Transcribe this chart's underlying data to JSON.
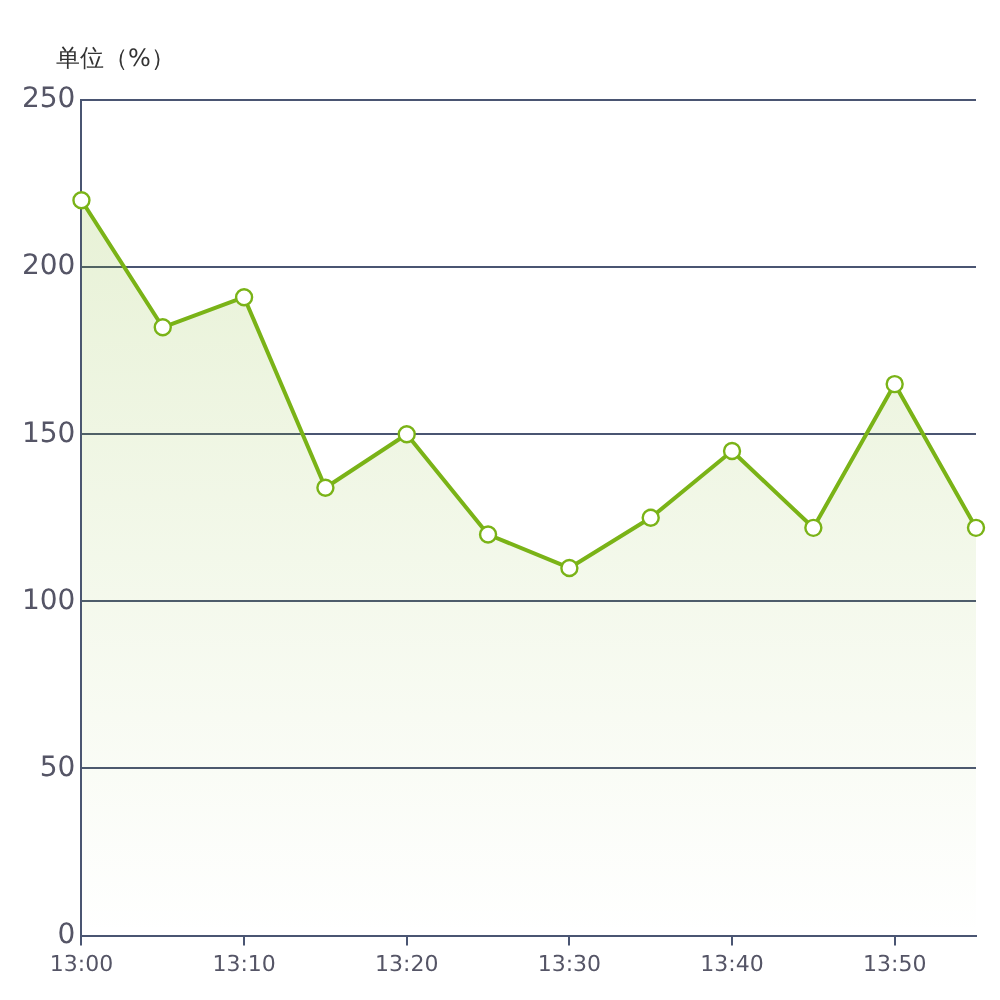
{
  "chart_data": {
    "type": "area",
    "ylabel": "单位（%）",
    "categories": [
      "13:00",
      null,
      "13:10",
      null,
      "13:20",
      null,
      "13:30",
      null,
      "13:40",
      null,
      "13:50",
      null
    ],
    "series": [
      {
        "color": "#7ab317",
        "values": [
          220,
          182,
          191,
          134,
          150,
          120,
          110,
          125,
          145,
          122,
          165,
          122
        ]
      }
    ],
    "ylim": [
      0,
      250
    ],
    "yticks": [
      0,
      50,
      100,
      150,
      200,
      250
    ],
    "grid": "y",
    "legend": false,
    "marker": "circle",
    "line_style": "solid"
  }
}
